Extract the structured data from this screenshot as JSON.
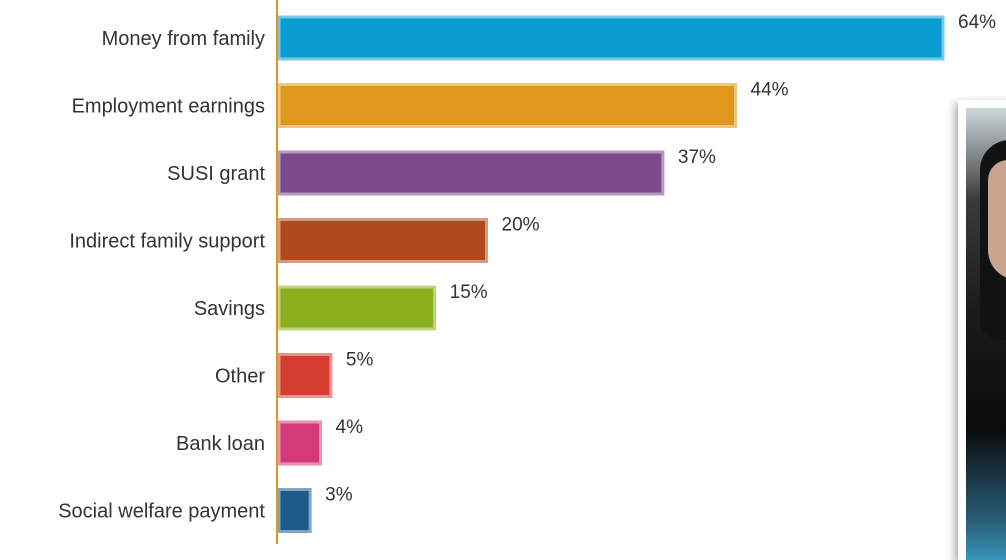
{
  "chart_data": {
    "type": "bar",
    "orientation": "horizontal",
    "categories": [
      "Money from family",
      "Employment earnings",
      "SUSI grant",
      "Indirect family support",
      "Savings",
      "Other",
      "Bank loan",
      "Social welfare payment"
    ],
    "values": [
      64,
      44,
      37,
      20,
      15,
      5,
      4,
      3
    ],
    "value_labels": [
      "64%",
      "44%",
      "37%",
      "20%",
      "15%",
      "5%",
      "4%",
      "3%"
    ],
    "colors": [
      "#0a9bd0",
      "#e0981c",
      "#7a4a8a",
      "#b04a1c",
      "#8db01e",
      "#d43c30",
      "#d43a7a",
      "#1e5a8a"
    ],
    "xlim": [
      0,
      64
    ],
    "axis_color": "#e0981c",
    "grid": false,
    "legend": "none"
  },
  "photo": {
    "name": "person-photo"
  }
}
